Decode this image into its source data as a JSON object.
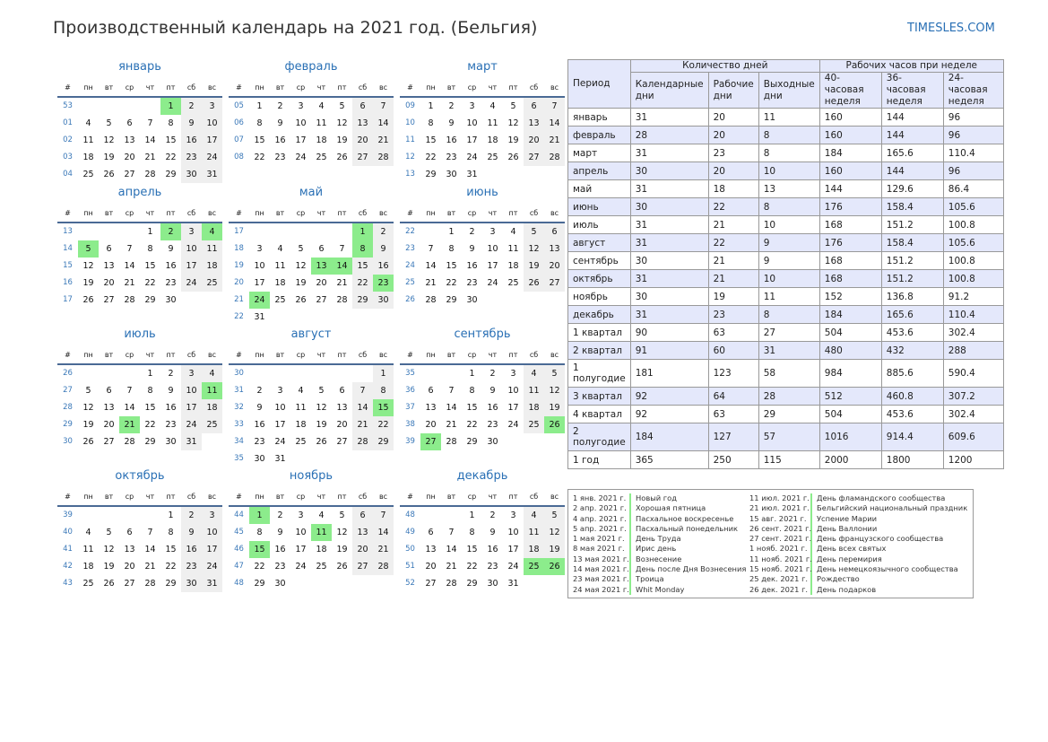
{
  "title": "Производственный календарь на 2021 год. (Бельгия)",
  "site": "TIMESLES.COM",
  "colors": {
    "accent": "#2a70b5",
    "holiday": "#8cec8c",
    "weekend": "#efefef",
    "table_header": "#e4e8fb"
  },
  "weekday_header": [
    "#",
    "пн",
    "вт",
    "ср",
    "чт",
    "пт",
    "сб",
    "вс"
  ],
  "months": [
    {
      "name": "январь",
      "first": 5,
      "days": 31,
      "weeks": [
        "53",
        "01",
        "02",
        "03",
        "04"
      ],
      "holidays": [
        1
      ]
    },
    {
      "name": "февраль",
      "first": 1,
      "days": 28,
      "weeks": [
        "05",
        "06",
        "07",
        "08"
      ],
      "holidays": []
    },
    {
      "name": "март",
      "first": 1,
      "days": 31,
      "weeks": [
        "09",
        "10",
        "11",
        "12",
        "13"
      ],
      "holidays": []
    },
    {
      "name": "апрель",
      "first": 4,
      "days": 30,
      "weeks": [
        "13",
        "14",
        "15",
        "16",
        "17"
      ],
      "holidays": [
        2,
        4,
        5
      ]
    },
    {
      "name": "май",
      "first": 6,
      "days": 31,
      "weeks": [
        "17",
        "18",
        "19",
        "20",
        "21",
        "22"
      ],
      "holidays": [
        1,
        8,
        13,
        14,
        23,
        24
      ]
    },
    {
      "name": "июнь",
      "first": 2,
      "days": 30,
      "weeks": [
        "22",
        "23",
        "24",
        "25",
        "26"
      ],
      "holidays": []
    },
    {
      "name": "июль",
      "first": 4,
      "days": 31,
      "weeks": [
        "26",
        "27",
        "28",
        "29",
        "30"
      ],
      "holidays": [
        11,
        21
      ]
    },
    {
      "name": "август",
      "first": 7,
      "days": 31,
      "weeks": [
        "30",
        "31",
        "32",
        "33",
        "34",
        "35"
      ],
      "holidays": [
        15
      ]
    },
    {
      "name": "сентябрь",
      "first": 3,
      "days": 30,
      "weeks": [
        "35",
        "36",
        "37",
        "38",
        "39"
      ],
      "holidays": [
        26,
        27
      ]
    },
    {
      "name": "октябрь",
      "first": 5,
      "days": 31,
      "weeks": [
        "39",
        "40",
        "41",
        "42",
        "43"
      ],
      "holidays": []
    },
    {
      "name": "ноябрь",
      "first": 1,
      "days": 30,
      "weeks": [
        "44",
        "45",
        "46",
        "47",
        "48"
      ],
      "holidays": [
        1,
        11,
        15
      ]
    },
    {
      "name": "декабрь",
      "first": 3,
      "days": 31,
      "weeks": [
        "48",
        "49",
        "50",
        "51",
        "52"
      ],
      "holidays": [
        25,
        26
      ]
    }
  ],
  "stats": {
    "h_period": "Период",
    "h_days": "Количество дней",
    "h_hours": "Рабочих часов при неделе",
    "sub": [
      "Календарные дни",
      "Рабочие дни",
      "Выходные дни",
      "40-часовая неделя",
      "36-часовая неделя",
      "24-часовая неделя"
    ],
    "rows": [
      [
        "январь",
        "31",
        "20",
        "11",
        "160",
        "144",
        "96"
      ],
      [
        "февраль",
        "28",
        "20",
        "8",
        "160",
        "144",
        "96"
      ],
      [
        "март",
        "31",
        "23",
        "8",
        "184",
        "165.6",
        "110.4"
      ],
      [
        "апрель",
        "30",
        "20",
        "10",
        "160",
        "144",
        "96"
      ],
      [
        "май",
        "31",
        "18",
        "13",
        "144",
        "129.6",
        "86.4"
      ],
      [
        "июнь",
        "30",
        "22",
        "8",
        "176",
        "158.4",
        "105.6"
      ],
      [
        "июль",
        "31",
        "21",
        "10",
        "168",
        "151.2",
        "100.8"
      ],
      [
        "август",
        "31",
        "22",
        "9",
        "176",
        "158.4",
        "105.6"
      ],
      [
        "сентябрь",
        "30",
        "21",
        "9",
        "168",
        "151.2",
        "100.8"
      ],
      [
        "октябрь",
        "31",
        "21",
        "10",
        "168",
        "151.2",
        "100.8"
      ],
      [
        "ноябрь",
        "30",
        "19",
        "11",
        "152",
        "136.8",
        "91.2"
      ],
      [
        "декабрь",
        "31",
        "23",
        "8",
        "184",
        "165.6",
        "110.4"
      ],
      [
        "1 квартал",
        "90",
        "63",
        "27",
        "504",
        "453.6",
        "302.4"
      ],
      [
        "2 квартал",
        "91",
        "60",
        "31",
        "480",
        "432",
        "288"
      ],
      [
        "1 полугодие",
        "181",
        "123",
        "58",
        "984",
        "885.6",
        "590.4"
      ],
      [
        "3 квартал",
        "92",
        "64",
        "28",
        "512",
        "460.8",
        "307.2"
      ],
      [
        "4 квартал",
        "92",
        "63",
        "29",
        "504",
        "453.6",
        "302.4"
      ],
      [
        "2 полугодие",
        "184",
        "127",
        "57",
        "1016",
        "914.4",
        "609.6"
      ],
      [
        "1 год",
        "365",
        "250",
        "115",
        "2000",
        "1800",
        "1200"
      ]
    ]
  },
  "holidays": [
    [
      "1 янв. 2021 г.",
      "Новый год"
    ],
    [
      "2 апр. 2021 г.",
      "Хорошая пятница"
    ],
    [
      "4 апр. 2021 г.",
      "Пасхальное воскресенье"
    ],
    [
      "5 апр. 2021 г.",
      "Пасхальный понедельник"
    ],
    [
      "1 мая 2021 г.",
      "День Труда"
    ],
    [
      "8 мая 2021 г.",
      "Ирис день"
    ],
    [
      "13 мая 2021 г.",
      "Вознесение"
    ],
    [
      "14 мая 2021 г.",
      "День после Дня Вознесения"
    ],
    [
      "23 мая 2021 г.",
      "Троица"
    ],
    [
      "24 мая 2021 г.",
      "Whit Monday"
    ],
    [
      "11 июл. 2021 г.",
      "День фламандского сообщества"
    ],
    [
      "21 июл. 2021 г.",
      "Бельгийский национальный праздник"
    ],
    [
      "15 авг. 2021 г.",
      "Успение Марии"
    ],
    [
      "26 сент. 2021 г.",
      "День Валлонии"
    ],
    [
      "27 сент. 2021 г.",
      "День французского сообщества"
    ],
    [
      "1 нояб. 2021 г.",
      "День всех святых"
    ],
    [
      "11 нояб. 2021 г.",
      "День перемирия"
    ],
    [
      "15 нояб. 2021 г.",
      "День немецкоязычного сообщества"
    ],
    [
      "25 дек. 2021 г.",
      "Рождество"
    ],
    [
      "26 дек. 2021 г.",
      "День подарков"
    ]
  ]
}
